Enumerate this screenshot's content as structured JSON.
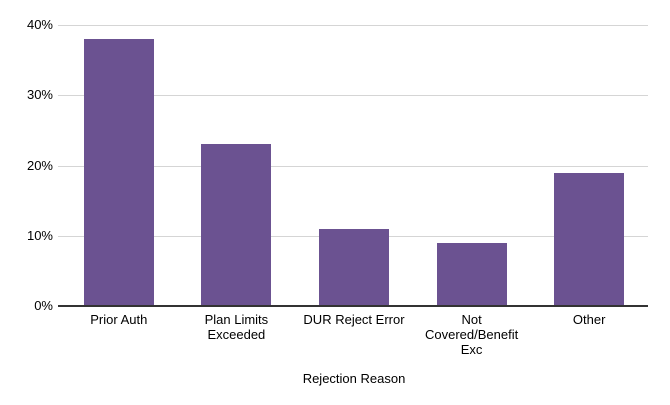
{
  "chart_data": {
    "type": "bar",
    "title": "",
    "xlabel": "Rejection Reason",
    "ylabel": "",
    "categories": [
      "Prior Auth",
      "Plan Limits\nExceeded",
      "DUR Reject Error",
      "Not\nCovered/Benefit\nExc",
      "Other"
    ],
    "values": [
      38,
      23,
      11,
      9,
      19
    ],
    "value_unit": "%",
    "ylim": [
      0,
      40
    ],
    "y_tick_step": 10,
    "y_tick_labels": [
      "0%",
      "10%",
      "20%",
      "30%",
      "40%"
    ],
    "grid": "horizontal",
    "legend": "none",
    "colors": {
      "bar_fill": "#6b5291",
      "gridline": "#d5d5d5",
      "axis_line": "#333333",
      "text": "#000000",
      "background": "#ffffff"
    }
  }
}
